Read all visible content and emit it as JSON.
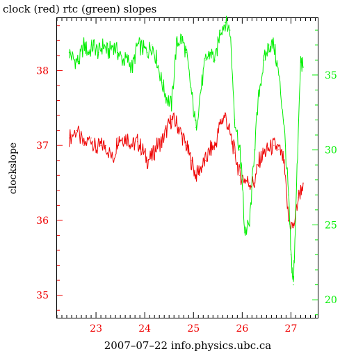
{
  "chart_data": {
    "type": "line",
    "title": "clock (red) rtc (green) slopes",
    "xlabel": "2007–07–22 info.physics.ubc.ca",
    "ylabel": "clockslope",
    "xlim": [
      22.2,
      27.55
    ],
    "ylim_left": [
      34.7,
      38.7
    ],
    "ylim_right": [
      18.8,
      38.8
    ],
    "x_ticks": [
      "23",
      "24",
      "25",
      "26",
      "27"
    ],
    "y_ticks_left": [
      "35",
      "36",
      "37",
      "38"
    ],
    "y_ticks_right": [
      "20",
      "25",
      "30",
      "35"
    ],
    "grid": false,
    "colors": {
      "clock": "#ee0000",
      "rtc": "#00ee00",
      "axes": "#000000"
    },
    "series": [
      {
        "name": "clock",
        "axis": "left",
        "x": [
          22.45,
          22.6,
          22.75,
          22.9,
          23.0,
          23.1,
          23.2,
          23.35,
          23.45,
          23.55,
          23.65,
          23.75,
          23.85,
          23.95,
          24.05,
          24.15,
          24.25,
          24.35,
          24.45,
          24.55,
          24.65,
          24.75,
          24.85,
          24.95,
          25.05,
          25.15,
          25.25,
          25.35,
          25.45,
          25.55,
          25.65,
          25.75,
          25.85,
          25.95,
          26.05,
          26.15,
          26.25,
          26.35,
          26.45,
          26.55,
          26.65,
          26.75,
          26.85,
          26.95,
          27.05,
          27.15,
          27.25
        ],
        "y": [
          37.1,
          37.2,
          37.0,
          37.1,
          36.95,
          37.0,
          37.0,
          36.8,
          37.1,
          37.1,
          37.1,
          37.0,
          37.05,
          36.95,
          36.8,
          36.85,
          37.0,
          37.05,
          37.2,
          37.35,
          37.3,
          37.15,
          37.0,
          36.8,
          36.6,
          36.7,
          36.8,
          36.95,
          37.0,
          37.3,
          37.4,
          37.15,
          36.9,
          36.6,
          36.55,
          36.5,
          36.5,
          36.8,
          36.9,
          36.95,
          37.0,
          36.95,
          36.8,
          36.0,
          35.9,
          36.3,
          36.5
        ]
      },
      {
        "name": "rtc",
        "axis": "right",
        "x": [
          22.45,
          22.55,
          22.65,
          22.75,
          22.85,
          22.95,
          23.05,
          23.15,
          23.25,
          23.35,
          23.45,
          23.55,
          23.65,
          23.75,
          23.85,
          23.95,
          24.05,
          24.15,
          24.25,
          24.35,
          24.45,
          24.55,
          24.65,
          24.75,
          24.85,
          24.95,
          25.05,
          25.15,
          25.25,
          25.35,
          25.45,
          25.55,
          25.65,
          25.75,
          25.85,
          25.95,
          26.0,
          26.05,
          26.15,
          26.25,
          26.35,
          26.45,
          26.55,
          26.65,
          26.75,
          26.85,
          26.95,
          27.0,
          27.05,
          27.1,
          27.2,
          27.25
        ],
        "y": [
          36.5,
          36.0,
          35.9,
          37.0,
          36.5,
          37.0,
          36.5,
          37.0,
          36.5,
          37.0,
          36.5,
          36.0,
          36.0,
          35.5,
          37.0,
          36.8,
          36.5,
          37.0,
          36.0,
          34.5,
          33.5,
          33.0,
          37.0,
          37.5,
          36.5,
          34.0,
          31.5,
          34.0,
          36.0,
          36.5,
          36.0,
          38.0,
          38.5,
          38.0,
          32.0,
          30.0,
          28.0,
          24.5,
          25.0,
          30.0,
          34.0,
          36.0,
          37.0,
          37.0,
          35.0,
          32.0,
          27.0,
          23.0,
          21.0,
          26.0,
          36.0,
          35.5
        ]
      }
    ]
  }
}
